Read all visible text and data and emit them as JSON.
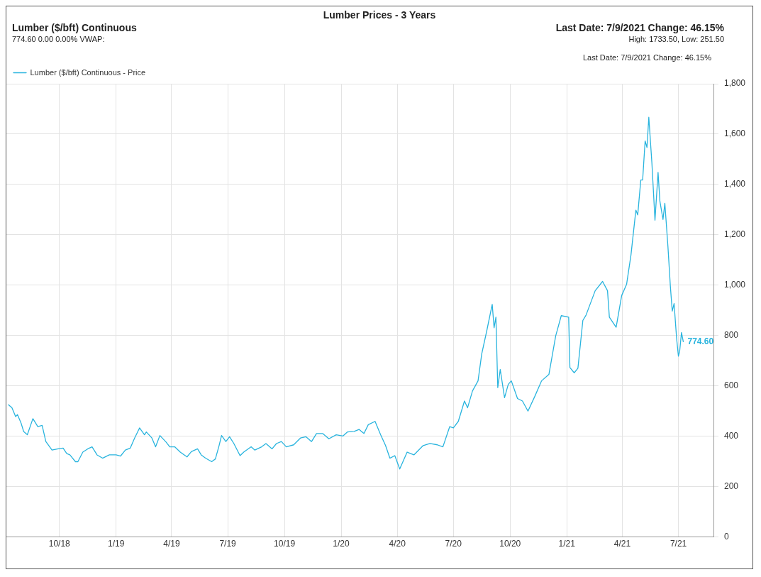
{
  "chart_data": {
    "type": "line",
    "title": "Lumber Prices - 3 Years",
    "annotations": [
      "Lumber ($/bft) Continuous",
      "774.60 0.00 0.00% VWAP:",
      "Last Date: 7/9/2021 Change: 46.15%",
      "High: 1733.50, Low: 251.50",
      "Last Date: 7/9/2021 Change: 46.15%",
      {
        "text": "774.60",
        "x": "2021-07-09",
        "y": 774.6
      }
    ],
    "x": [
      "2018-07-10",
      "2018-07-16",
      "2018-07-22",
      "2018-07-25",
      "2018-07-31",
      "2018-08-04",
      "2018-08-10",
      "2018-08-19",
      "2018-08-27",
      "2018-09-03",
      "2018-09-09",
      "2018-09-19",
      "2018-09-29",
      "2018-10-07",
      "2018-10-13",
      "2018-10-18",
      "2018-10-27",
      "2018-10-31",
      "2018-11-08",
      "2018-11-16",
      "2018-11-23",
      "2018-12-01",
      "2018-12-10",
      "2018-12-21",
      "2019-01-01",
      "2019-01-08",
      "2019-01-16",
      "2019-01-24",
      "2019-01-31",
      "2019-02-08",
      "2019-02-16",
      "2019-02-19",
      "2019-02-28",
      "2019-03-06",
      "2019-03-13",
      "2019-03-23",
      "2019-03-29",
      "2019-04-06",
      "2019-04-15",
      "2019-04-26",
      "2019-05-03",
      "2019-05-13",
      "2019-05-19",
      "2019-05-26",
      "2019-06-05",
      "2019-06-11",
      "2019-06-17",
      "2019-06-21",
      "2019-06-28",
      "2019-07-04",
      "2019-07-11",
      "2019-07-21",
      "2019-07-27",
      "2019-08-08",
      "2019-08-14",
      "2019-08-25",
      "2019-09-01",
      "2019-09-11",
      "2019-09-18",
      "2019-09-26",
      "2019-10-04",
      "2019-10-16",
      "2019-10-27",
      "2019-11-05",
      "2019-11-14",
      "2019-11-22",
      "2019-12-02",
      "2019-12-12",
      "2019-12-24",
      "2020-01-04",
      "2020-01-11",
      "2020-01-22",
      "2020-01-30",
      "2020-02-07",
      "2020-02-14",
      "2020-02-25",
      "2020-03-05",
      "2020-03-13",
      "2020-03-20",
      "2020-03-28",
      "2020-04-05",
      "2020-04-17",
      "2020-04-28",
      "2020-05-13",
      "2020-05-24",
      "2020-06-05",
      "2020-06-14",
      "2020-06-25",
      "2020-07-01",
      "2020-07-09",
      "2020-07-19",
      "2020-07-24",
      "2020-08-01",
      "2020-08-10",
      "2020-08-16",
      "2020-08-24",
      "2020-09-02",
      "2020-09-05",
      "2020-09-08",
      "2020-09-11",
      "2020-09-15",
      "2020-09-22",
      "2020-09-28",
      "2020-10-03",
      "2020-10-13",
      "2020-10-21",
      "2020-10-30",
      "2020-11-10",
      "2020-11-21",
      "2020-12-03",
      "2020-12-14",
      "2020-12-23",
      "2021-01-04",
      "2021-01-06",
      "2021-01-13",
      "2021-01-19",
      "2021-01-27",
      "2021-02-01",
      "2021-02-16",
      "2021-02-28",
      "2021-03-08",
      "2021-03-11",
      "2021-03-22",
      "2021-03-31",
      "2021-04-08",
      "2021-04-15",
      "2021-04-23",
      "2021-04-26",
      "2021-05-01",
      "2021-05-04",
      "2021-05-08",
      "2021-05-11",
      "2021-05-14",
      "2021-05-19",
      "2021-05-24",
      "2021-05-29",
      "2021-06-01",
      "2021-06-06",
      "2021-06-09",
      "2021-06-14",
      "2021-06-18",
      "2021-06-21",
      "2021-06-24",
      "2021-06-28",
      "2021-07-01",
      "2021-07-03",
      "2021-07-06",
      "2021-07-09"
    ],
    "series": [
      {
        "name": "Lumber ($/bft) Continuous - Price",
        "color": "#29b4de",
        "values": [
          526,
          513,
          478,
          486,
          451,
          419,
          406,
          470,
          438,
          443,
          379,
          345,
          350,
          353,
          331,
          326,
          299,
          299,
          337,
          350,
          358,
          326,
          313,
          326,
          326,
          321,
          345,
          353,
          393,
          433,
          406,
          417,
          393,
          358,
          403,
          377,
          358,
          358,
          337,
          318,
          339,
          350,
          326,
          313,
          299,
          310,
          363,
          403,
          379,
          398,
          371,
          323,
          337,
          358,
          345,
          358,
          371,
          350,
          371,
          379,
          358,
          366,
          393,
          398,
          379,
          411,
          411,
          390,
          406,
          401,
          417,
          419,
          427,
          411,
          446,
          459,
          406,
          363,
          313,
          323,
          270,
          337,
          326,
          363,
          371,
          366,
          358,
          438,
          433,
          459,
          540,
          513,
          580,
          620,
          727,
          817,
          924,
          831,
          873,
          593,
          665,
          553,
          606,
          620,
          550,
          540,
          500,
          558,
          620,
          646,
          799,
          879,
          873,
          673,
          652,
          670,
          860,
          880,
          978,
          1015,
          978,
          873,
          833,
          959,
          1004,
          1119,
          1298,
          1279,
          1418,
          1418,
          1573,
          1547,
          1667,
          1485,
          1258,
          1448,
          1333,
          1261,
          1325,
          1154,
          994,
          897,
          927,
          791,
          718,
          737,
          812,
          774.6
        ]
      }
    ],
    "xlim": [
      "2018-07-07",
      "2021-08-28"
    ],
    "xticks": [
      {
        "value": "2018-10-01",
        "label": "10/18"
      },
      {
        "value": "2019-01-01",
        "label": "1/19"
      },
      {
        "value": "2019-04-01",
        "label": "4/19"
      },
      {
        "value": "2019-07-01",
        "label": "7/19"
      },
      {
        "value": "2019-10-01",
        "label": "10/19"
      },
      {
        "value": "2020-01-01",
        "label": "1/20"
      },
      {
        "value": "2020-04-01",
        "label": "4/20"
      },
      {
        "value": "2020-07-01",
        "label": "7/20"
      },
      {
        "value": "2020-10-01",
        "label": "10/20"
      },
      {
        "value": "2021-01-01",
        "label": "1/21"
      },
      {
        "value": "2021-04-01",
        "label": "4/21"
      },
      {
        "value": "2021-07-01",
        "label": "7/21"
      }
    ],
    "ylim": [
      0,
      1800
    ],
    "yticks": [
      0,
      200,
      400,
      600,
      800,
      {
        "value": 1000,
        "label": "1,000"
      },
      {
        "value": 1200,
        "label": "1,200"
      },
      {
        "value": 1400,
        "label": "1,400"
      },
      {
        "value": 1600,
        "label": "1,600"
      },
      {
        "value": 1800,
        "label": "1,800"
      }
    ],
    "grid": true,
    "legend": "top left",
    "marker": "none",
    "line_style": "solid"
  }
}
